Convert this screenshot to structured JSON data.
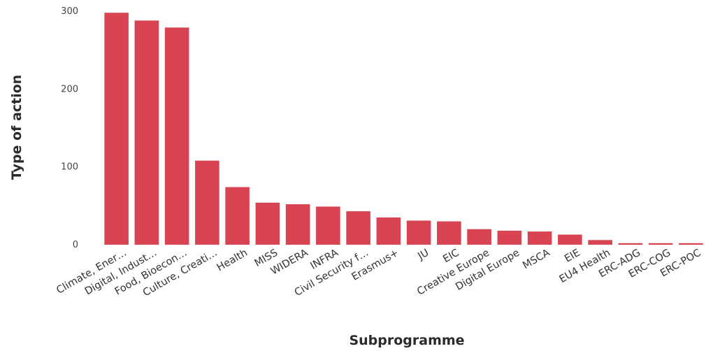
{
  "chart_data": {
    "type": "bar",
    "title": "",
    "xlabel": "Subprogramme",
    "ylabel": "Type of action",
    "ylim": [
      0,
      300
    ],
    "yticks": [
      0,
      100,
      200,
      300
    ],
    "grid": false,
    "color": "#d94452",
    "categories": [
      "Climate, Ener…",
      "Digital, Indust…",
      "Food, Bioecon…",
      "Culture, Creati…",
      "Health",
      "MISS",
      "WIDERA",
      "INFRA",
      "Civil Security f…",
      "Erasmus+",
      "JU",
      "EIC",
      "Creative Europe",
      "Digital Europe",
      "MSCA",
      "EIE",
      "EU4 Health",
      "ERC-ADG",
      "ERC-COG",
      "ERC-POC"
    ],
    "values": [
      298,
      288,
      279,
      108,
      74,
      54,
      52,
      49,
      43,
      35,
      31,
      30,
      20,
      18,
      17,
      13,
      6,
      2,
      2,
      2
    ]
  }
}
